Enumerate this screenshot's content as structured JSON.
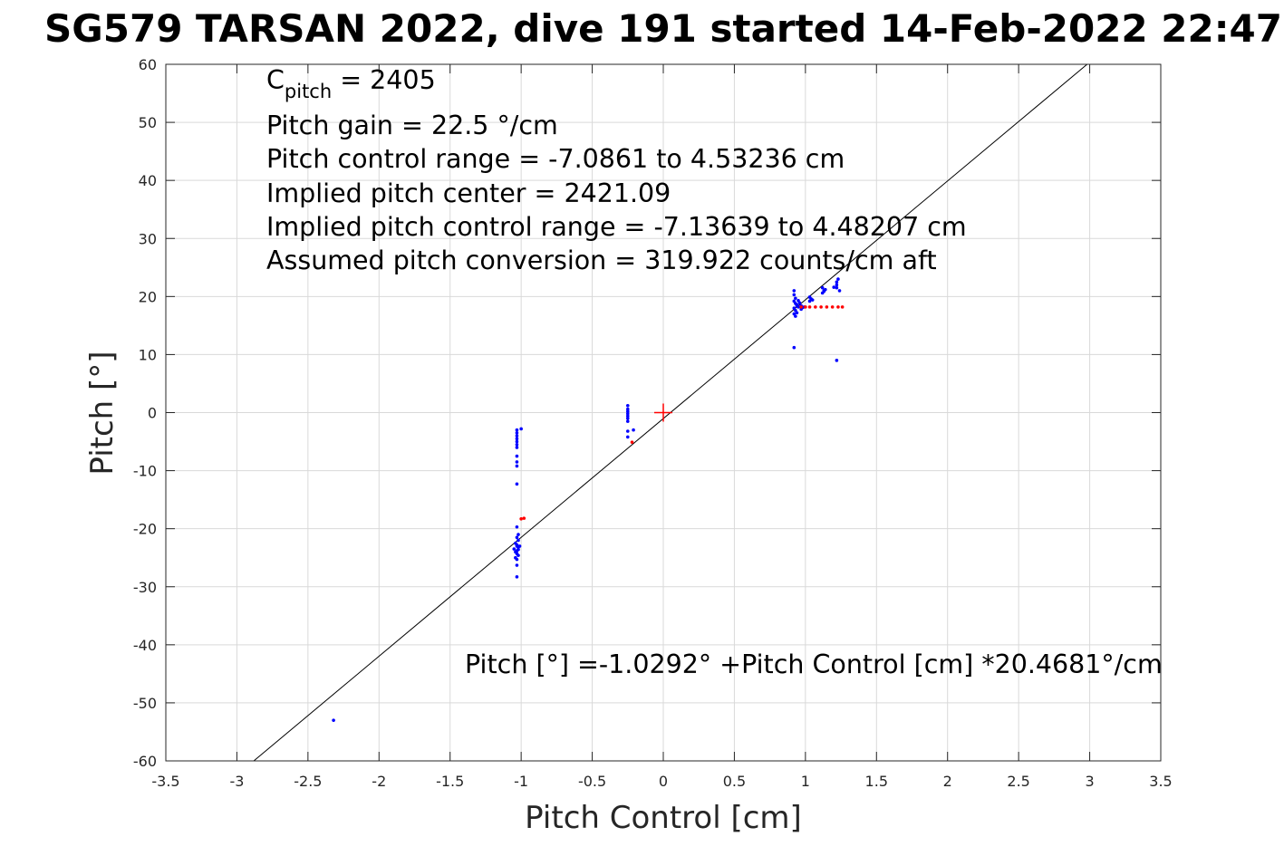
{
  "chart_data": {
    "type": "scatter",
    "title": "SG579 TARSAN 2022, dive 191 started 14-Feb-2022 22:47",
    "xlabel": "Pitch Control [cm]",
    "ylabel": "Pitch [°]",
    "xlim": [
      -3.5,
      3.5
    ],
    "ylim": [
      -60,
      60
    ],
    "xticks": [
      -3.5,
      -3,
      -2.5,
      -2,
      -1.5,
      -1,
      -0.5,
      0,
      0.5,
      1,
      1.5,
      2,
      2.5,
      3,
      3.5
    ],
    "xtick_labels": [
      "-3.5",
      "-3",
      "-2.5",
      "-2",
      "-1.5",
      "-1",
      "-0.5",
      "0",
      "0.5",
      "1",
      "1.5",
      "2",
      "2.5",
      "3",
      "3.5"
    ],
    "yticks": [
      -60,
      -50,
      -40,
      -30,
      -20,
      -10,
      0,
      10,
      20,
      30,
      40,
      50,
      60
    ],
    "ytick_labels": [
      "-60",
      "-50",
      "-40",
      "-30",
      "-20",
      "-10",
      "0",
      "10",
      "20",
      "30",
      "40",
      "50",
      "60"
    ],
    "grid": true,
    "colors": {
      "observed": "#0000ff",
      "excluded": "#ff0000",
      "fit": "#000000",
      "center": "#ff0000",
      "grid": "#d9d9d9",
      "axes": "#262626"
    },
    "fit_line": {
      "intercept": -1.0292,
      "slope": 20.4681
    },
    "center_marker": {
      "x": 0,
      "y": 0
    },
    "series": [
      {
        "color": "#0000ff",
        "points": [
          [
            -2.32,
            -53
          ],
          [
            -1.03,
            -3
          ],
          [
            -1.03,
            -3.5
          ],
          [
            -1.03,
            -4
          ],
          [
            -1.03,
            -4.5
          ],
          [
            -1.03,
            -5
          ],
          [
            -1.03,
            -5.5
          ],
          [
            -1.03,
            -6
          ],
          [
            -1.0,
            -2.8
          ],
          [
            -1.03,
            -7.5
          ],
          [
            -1.03,
            -8.5
          ],
          [
            -1.03,
            -9.2
          ],
          [
            -1.03,
            -12.3
          ],
          [
            -1.03,
            -19.7
          ],
          [
            -1.02,
            -21
          ],
          [
            -1.03,
            -21.5
          ],
          [
            -1.02,
            -22
          ],
          [
            -1.04,
            -22.5
          ],
          [
            -1.03,
            -23
          ],
          [
            -1.02,
            -23.2
          ],
          [
            -1.05,
            -23.5
          ],
          [
            -1.03,
            -23.8
          ],
          [
            -1.01,
            -23
          ],
          [
            -1.04,
            -24
          ],
          [
            -1.03,
            -24.3
          ],
          [
            -1.02,
            -24.6
          ],
          [
            -1.04,
            -25
          ],
          [
            -1.03,
            -22.8
          ],
          [
            -1.02,
            -23.6
          ],
          [
            -1.03,
            -25.3
          ],
          [
            -1.03,
            -26.3
          ],
          [
            -1.03,
            -28.3
          ],
          [
            -0.25,
            1.2
          ],
          [
            -0.25,
            0.6
          ],
          [
            -0.25,
            0.2
          ],
          [
            -0.25,
            -0.2
          ],
          [
            -0.25,
            -0.6
          ],
          [
            -0.25,
            -1
          ],
          [
            -0.25,
            -1.5
          ],
          [
            -0.21,
            -3
          ],
          [
            -0.25,
            -3.2
          ],
          [
            -0.25,
            -4.2
          ],
          [
            0.92,
            21
          ],
          [
            0.92,
            20.3
          ],
          [
            0.93,
            19.7
          ],
          [
            0.92,
            19.2
          ],
          [
            0.93,
            18.8
          ],
          [
            0.94,
            18.4
          ],
          [
            0.92,
            18
          ],
          [
            0.95,
            18.2
          ],
          [
            0.93,
            17.6
          ],
          [
            0.94,
            17.2
          ],
          [
            0.92,
            17
          ],
          [
            0.93,
            16.6
          ],
          [
            0.96,
            18.9
          ],
          [
            0.97,
            18.4
          ],
          [
            0.98,
            18.1
          ],
          [
            0.97,
            17.8
          ],
          [
            0.95,
            19.3
          ],
          [
            0.94,
            18.6
          ],
          [
            0.99,
            18.2
          ],
          [
            1.03,
            19.2
          ],
          [
            1.04,
            19.6
          ],
          [
            1.03,
            19.9
          ],
          [
            1.05,
            19.4
          ],
          [
            1.12,
            20.6
          ],
          [
            1.13,
            21
          ],
          [
            1.14,
            21.2
          ],
          [
            1.12,
            21.5
          ],
          [
            1.13,
            20.9
          ],
          [
            1.22,
            22
          ],
          [
            1.22,
            22.5
          ],
          [
            1.23,
            23
          ],
          [
            1.22,
            21.5
          ],
          [
            1.24,
            21
          ],
          [
            1.2,
            21.6
          ],
          [
            0.92,
            11.2
          ],
          [
            1.22,
            9
          ]
        ]
      },
      {
        "color": "#ff0000",
        "points": [
          [
            -1.0,
            -18.3
          ],
          [
            -0.98,
            -18.2
          ],
          [
            -0.22,
            -5.1
          ],
          [
            0.97,
            18.2
          ],
          [
            1.0,
            18.2
          ],
          [
            1.03,
            18.2
          ],
          [
            1.07,
            18.2
          ],
          [
            1.11,
            18.2
          ],
          [
            1.15,
            18.2
          ],
          [
            1.19,
            18.2
          ],
          [
            1.23,
            18.2
          ],
          [
            1.26,
            18.2
          ]
        ]
      }
    ],
    "annotations": {
      "c_pitch_main": "C",
      "c_pitch_sub": "pitch",
      "c_pitch_value": " = 2405",
      "pitch_gain": "Pitch gain = 22.5 °/cm",
      "pitch_control_range": "Pitch control range = -7.0861 to 4.53236 cm",
      "implied_center": "Implied pitch center = 2421.09",
      "implied_range": "Implied pitch control range = -7.13639 to 4.48207 cm",
      "assumed_conversion": "Assumed pitch conversion = 319.922 counts/cm aft",
      "fit_equation": "Pitch [°] =-1.0292° +Pitch Control [cm] *20.4681°/cm"
    }
  }
}
